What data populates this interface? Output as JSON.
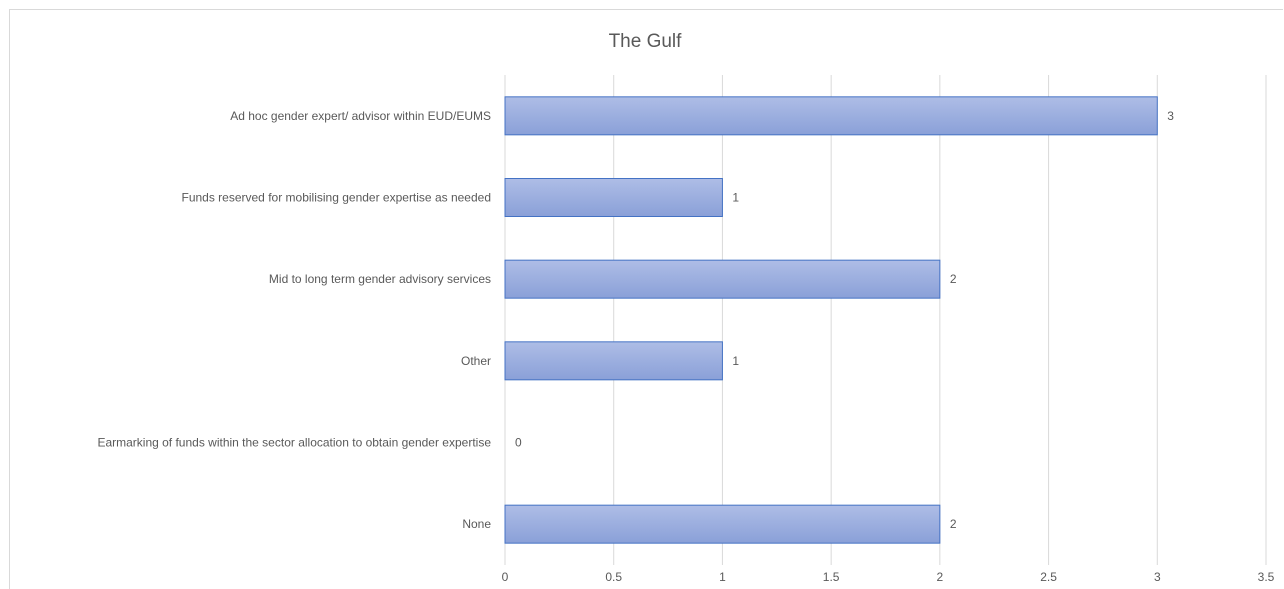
{
  "chart_data": {
    "type": "bar",
    "orientation": "horizontal",
    "title": "The Gulf",
    "categories": [
      "Ad hoc gender expert/ advisor within EUD/EUMS",
      "Funds reserved for mobilising gender expertise as needed",
      "Mid to long term gender advisory services",
      "Other",
      "Earmarking of funds within the sector allocation to obtain gender expertise",
      "None"
    ],
    "values": [
      3,
      1,
      2,
      1,
      0,
      2
    ],
    "xlim": [
      0,
      3.5
    ],
    "xticks": [
      "0",
      "0.5",
      "1",
      "1.5",
      "2",
      "2.5",
      "3",
      "3.5"
    ],
    "grid": true,
    "legend": "none",
    "colors": {
      "bar_fill_top": "#aebde6",
      "bar_fill_bottom": "#8aa0d8",
      "bar_stroke": "#4472c4",
      "grid": "#d9d9d9",
      "text": "#595959"
    }
  }
}
